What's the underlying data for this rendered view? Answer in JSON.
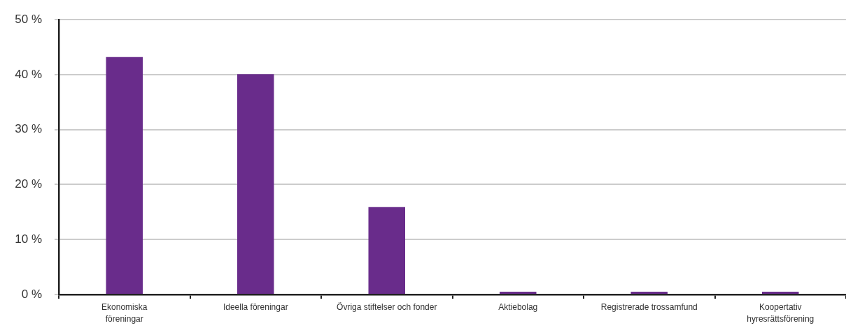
{
  "chart_data": {
    "type": "bar",
    "categories": [
      "Ekonomiska\nföreningar",
      "Ideella föreningar",
      "Övriga stiftelser och fonder",
      "Aktiebolag",
      "Registrerade trossamfund",
      "Koopertativ\nhyresrättsförening"
    ],
    "values": [
      43.2,
      40.1,
      15.9,
      0.5,
      0.5,
      0.5
    ],
    "color": "#692c8b",
    "ylim": [
      0,
      50
    ],
    "yticks": [
      {
        "value": 0,
        "label": "0 %"
      },
      {
        "value": 10,
        "label": "10 %"
      },
      {
        "value": 20,
        "label": "20 %"
      },
      {
        "value": 30,
        "label": "30 %"
      },
      {
        "value": 40,
        "label": "40 %"
      },
      {
        "value": 50,
        "label": "50 %"
      }
    ],
    "grid": "y"
  }
}
